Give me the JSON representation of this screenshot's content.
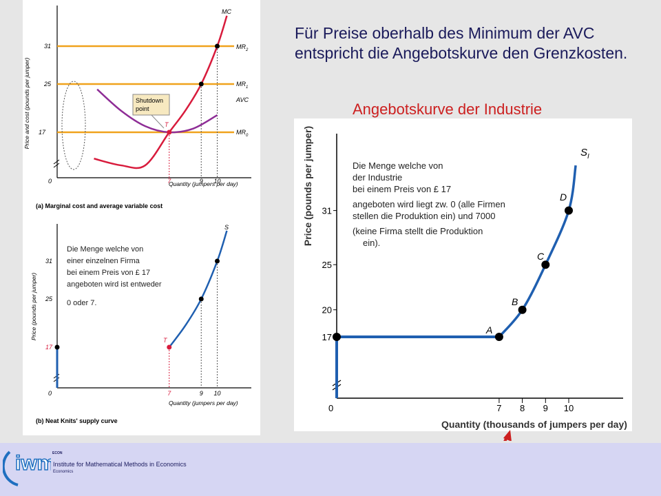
{
  "heading": "Für Preise oberhalb des Minimum der AVC entspricht die Angebotskurve den Grenzkosten.",
  "subheading": "Angebotskurve der Industrie",
  "colors": {
    "mr": "#f0a21c",
    "mc": "#d81b3c",
    "avc": "#8e2d96",
    "supply": "#1f5fb0",
    "heading": "#1a1a5a",
    "subheading": "#cc1f1f",
    "arrow": "#cc1f1f"
  },
  "footer": {
    "logo": "iwm",
    "econ": "ECON",
    "institute": "Institute for Mathematical Methods in Economics",
    "sub": "Economics"
  },
  "chart_data": [
    {
      "type": "line",
      "title": "(a) Marginal cost and average variable cost",
      "xlabel": "Quantity (jumpers per day)",
      "ylabel": "Price and cost (pounds per jumper)",
      "xticks": [
        "0",
        "7",
        "9",
        "10"
      ],
      "yticks": [
        "17",
        "25",
        "31"
      ],
      "series": [
        {
          "name": "MC",
          "x": [
            2.3,
            4,
            5.5,
            7,
            8,
            9,
            10,
            10.6
          ],
          "y": [
            12.7,
            11.6,
            11.6,
            17,
            20.5,
            25,
            31,
            36
          ]
        },
        {
          "name": "AVC",
          "x": [
            2.5,
            4,
            5.5,
            7,
            8.5,
            10
          ],
          "y": [
            24,
            20.5,
            18,
            17,
            17.6,
            19.8
          ]
        }
      ],
      "hlines": [
        {
          "name": "MR2",
          "y": 31
        },
        {
          "name": "MR1",
          "y": 25
        },
        {
          "name": "MR0",
          "y": 17
        }
      ],
      "points": [
        {
          "label": "T",
          "x": 7,
          "y": 17
        },
        {
          "x": 9,
          "y": 25
        },
        {
          "x": 10,
          "y": 31
        }
      ],
      "annotations": [
        "Shutdown point"
      ],
      "labels": {
        "mc": "MC",
        "avc": "AVC",
        "mr2": "MR",
        "mr2_sub": "2",
        "mr1": "MR",
        "mr1_sub": "1",
        "mr0": "MR",
        "mr0_sub": "0",
        "t": "T",
        "shutdown_1": "Shutdown",
        "shutdown_2": "point"
      }
    },
    {
      "type": "line",
      "title": "(b) Neat Knits' supply curve",
      "xlabel": "Quantity (jumpers per day)",
      "ylabel": "Price (pounds per jumper)",
      "xticks": [
        "0",
        "7",
        "9",
        "10"
      ],
      "yticks": [
        "17",
        "25",
        "31"
      ],
      "series": [
        {
          "name": "S",
          "x": [
            7,
            8,
            9,
            10,
            10.6
          ],
          "y": [
            17,
            20.5,
            25,
            31,
            36
          ]
        }
      ],
      "points": [
        {
          "label": "T",
          "x": 7,
          "y": 17
        },
        {
          "x": 0,
          "y": 17
        },
        {
          "x": 9,
          "y": 25
        },
        {
          "x": 10,
          "y": 31
        }
      ],
      "labels": {
        "s": "S",
        "t": "T"
      },
      "note": [
        "Die Menge welche von",
        "einer einzelnen Firma",
        "bei einem Preis von £ 17",
        "angeboten wird ist entweder",
        "0 oder 7."
      ]
    },
    {
      "type": "line",
      "xlabel": "Quantity (thousands of jumpers per day)",
      "ylabel": "Price (pounds per jumper)",
      "xticks": [
        "0",
        "7",
        "8",
        "9",
        "10"
      ],
      "yticks": [
        "17",
        "20",
        "25",
        "31"
      ],
      "series": [
        {
          "name": "S",
          "sub": "I",
          "x": [
            0,
            0,
            7,
            8,
            9,
            10,
            10.3
          ],
          "y": [
            17,
            17,
            17,
            20,
            25,
            31,
            36
          ]
        }
      ],
      "points": [
        {
          "label": "A",
          "x": 7,
          "y": 17
        },
        {
          "label": "B",
          "x": 8,
          "y": 20
        },
        {
          "label": "C",
          "x": 9,
          "y": 25
        },
        {
          "label": "D",
          "x": 10,
          "y": 31
        }
      ],
      "labels": {
        "s": "S",
        "s_sub": "I",
        "a": "A",
        "b": "B",
        "c": "C",
        "d": "D"
      },
      "note": [
        "Die Menge welche von",
        "der Industrie",
        "bei einem Preis von £ 17",
        "angeboten wird liegt zw. 0 (alle Firmen",
        "stellen die Produktion ein) und 7000",
        "(keine Firma stellt die Produktion",
        "ein)."
      ]
    }
  ]
}
